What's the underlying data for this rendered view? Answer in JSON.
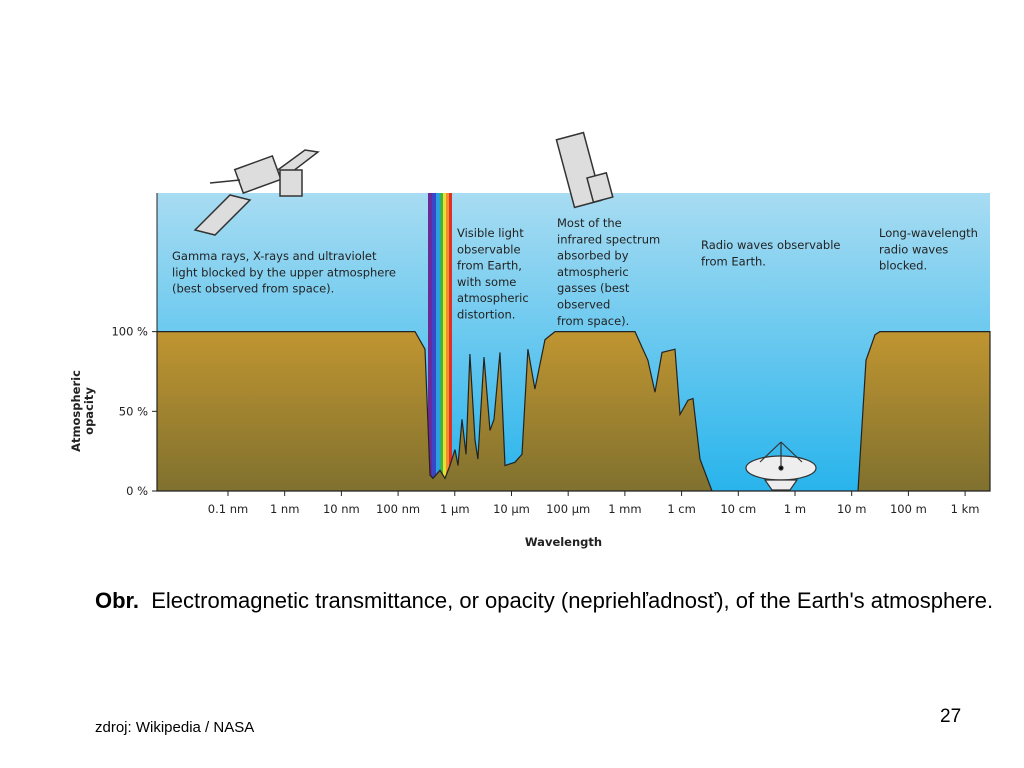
{
  "chart_data": {
    "type": "area",
    "xlabel": "Wavelength",
    "ylabel": [
      "Atmospheric",
      "opacity"
    ],
    "log_x": true,
    "color": "#a88a32",
    "x": [
      5.6e-12,
      1.99e-07,
      2.98e-07,
      3.66e-07,
      4.13e-07,
      5.48e-07,
      6.71e-07,
      8.2e-07,
      1.01e-06,
      1.14e-06,
      1.34e-06,
      1.58e-06,
      1.85e-06,
      2.27e-06,
      2.56e-06,
      3.27e-06,
      4.18e-06,
      4.91e-06,
      6.27e-06,
      7.67e-06,
      1.15e-05,
      1.53e-05,
      1.95e-05,
      2.59e-05,
      3.9e-05,
      5.85e-05,
      0.00151,
      0.00255,
      0.0034,
      0.00451,
      0.00766,
      0.00938,
      0.013,
      0.0159,
      0.0211,
      0.0344,
      12.9,
      17.9,
      25.8,
      31.5,
      2750
    ],
    "values": [
      100,
      100,
      89,
      10,
      8,
      13,
      8,
      16,
      26,
      16,
      45,
      23,
      86,
      32,
      20,
      84,
      38,
      45,
      87,
      16,
      18,
      23,
      89,
      64,
      95,
      100,
      100,
      82,
      62,
      87,
      89,
      48,
      57,
      58,
      20,
      0,
      0,
      82,
      98,
      100,
      100
    ],
    "xlim": [
      5.6e-12,
      2750
    ],
    "ylim": [
      0,
      187
    ],
    "xticks": [
      {
        "value": 1e-10,
        "label": "0.1 nm"
      },
      {
        "value": 1e-09,
        "label": "1 nm"
      },
      {
        "value": 1e-08,
        "label": "10 nm"
      },
      {
        "value": 1e-07,
        "label": "100 nm"
      },
      {
        "value": 1e-06,
        "label": "1 µm"
      },
      {
        "value": 1e-05,
        "label": "10 µm"
      },
      {
        "value": 0.0001,
        "label": "100 µm"
      },
      {
        "value": 0.001,
        "label": "1 mm"
      },
      {
        "value": 0.01,
        "label": "1 cm"
      },
      {
        "value": 0.1,
        "label": "10 cm"
      },
      {
        "value": 1,
        "label": "1 m"
      },
      {
        "value": 10,
        "label": "10 m"
      },
      {
        "value": 100,
        "label": "100 m"
      },
      {
        "value": 1000,
        "label": "1 km"
      }
    ],
    "yticks": [
      {
        "value": 0,
        "label": "0 %"
      },
      {
        "value": 50,
        "label": "50 %"
      },
      {
        "value": 100,
        "label": "100 %"
      }
    ],
    "annotations": [
      [
        "Gamma rays, X-rays and ultraviolet",
        "light blocked by the upper atmosphere",
        "(best observed from space)."
      ],
      [
        "Visible light",
        "observable",
        "from Earth,",
        "with some",
        "atmospheric",
        "distortion."
      ],
      [
        "Most of the",
        "infrared spectrum",
        "absorbed by",
        "atmospheric",
        "gasses (best",
        "observed",
        "from space)."
      ],
      [
        "Radio waves observable",
        "from Earth."
      ],
      [
        "Long-wavelength",
        "radio waves",
        "blocked."
      ]
    ]
  },
  "caption": {
    "label": "Obr.",
    "text": "Electromagnetic transmittance, or opacity (nepriehľadnosť), of the Earth's atmosphere."
  },
  "source": "zdroj: Wikipedia / NASA",
  "page_number": "27"
}
